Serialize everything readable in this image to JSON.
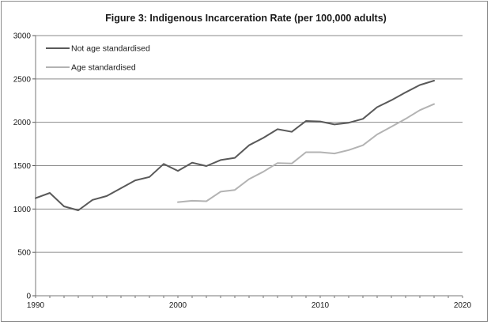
{
  "chart_data": {
    "type": "line",
    "title": "Figure 3: Indigenous Incarceration Rate (per 100,000 adults)",
    "xlabel": "",
    "ylabel": "",
    "xlim": [
      1990,
      2020
    ],
    "ylim": [
      0,
      3000
    ],
    "x_ticks": [
      1990,
      2000,
      2010,
      2020
    ],
    "y_ticks": [
      0,
      500,
      1000,
      1500,
      2000,
      2500,
      3000
    ],
    "grid": "horizontal",
    "legend_position": "top-left",
    "series": [
      {
        "name": "Not age standardised",
        "color": "#595959",
        "x": [
          1990,
          1991,
          1992,
          1993,
          1994,
          1995,
          1996,
          1997,
          1998,
          1999,
          2000,
          2001,
          2002,
          2003,
          2004,
          2005,
          2006,
          2007,
          2008,
          2009,
          2010,
          2011,
          2012,
          2013,
          2014,
          2015,
          2016,
          2017,
          2018
        ],
        "values": [
          1125,
          1185,
          1030,
          985,
          1105,
          1150,
          1240,
          1330,
          1370,
          1520,
          1440,
          1535,
          1495,
          1565,
          1590,
          1735,
          1820,
          1920,
          1890,
          2015,
          2010,
          1975,
          1995,
          2040,
          2175,
          2255,
          2345,
          2430,
          2480
        ]
      },
      {
        "name": "Age standardised",
        "color": "#b3b3b3",
        "x": [
          2000,
          2001,
          2002,
          2003,
          2004,
          2005,
          2006,
          2007,
          2008,
          2009,
          2010,
          2011,
          2012,
          2013,
          2014,
          2015,
          2016,
          2017,
          2018
        ],
        "values": [
          1080,
          1095,
          1090,
          1200,
          1220,
          1345,
          1430,
          1530,
          1525,
          1655,
          1655,
          1640,
          1680,
          1735,
          1860,
          1950,
          2040,
          2140,
          2210
        ]
      }
    ]
  }
}
